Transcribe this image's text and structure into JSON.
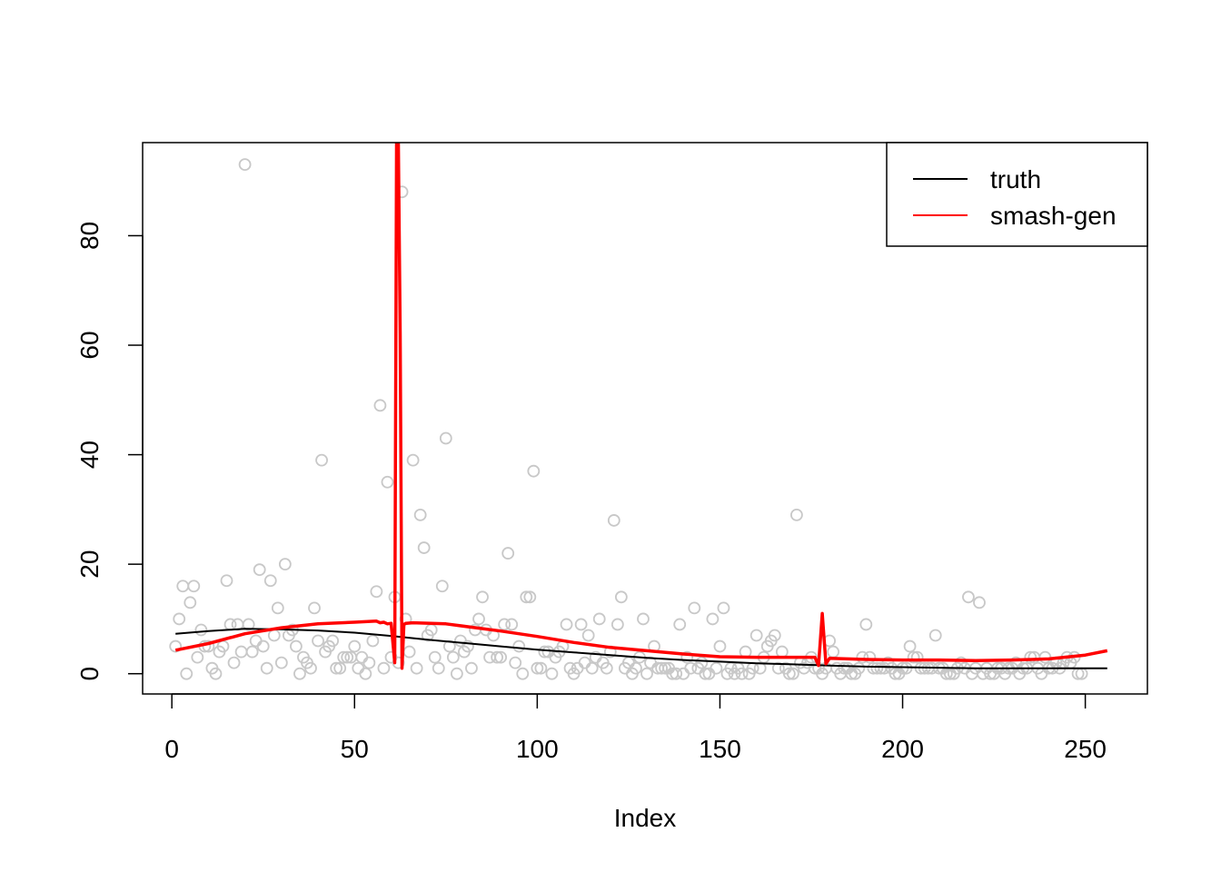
{
  "chart_data": {
    "type": "scatter",
    "title": "",
    "xlabel": "Index",
    "ylabel": "",
    "xlim": [
      -8,
      267
    ],
    "ylim": [
      -3.7,
      97
    ],
    "x_ticks": [
      0,
      50,
      100,
      150,
      200,
      250
    ],
    "y_ticks": [
      0,
      20,
      40,
      60,
      80
    ],
    "legend": {
      "position": "top-right",
      "entries": [
        {
          "label": "truth",
          "color": "#000000"
        },
        {
          "label": "smash-gen",
          "color": "#ff0000"
        }
      ]
    },
    "points": {
      "color": "#c8c8c8",
      "y": [
        5,
        10,
        16,
        0,
        13,
        16,
        3,
        8,
        5,
        5,
        1,
        0,
        4,
        5,
        17,
        9,
        2,
        9,
        4,
        93,
        9,
        4,
        6,
        19,
        5,
        1,
        17,
        7,
        12,
        2,
        20,
        7,
        8,
        5,
        0,
        3,
        2,
        1,
        12,
        6,
        39,
        4,
        5,
        6,
        1,
        1,
        3,
        3,
        3,
        5,
        1,
        3,
        0,
        2,
        6,
        15,
        49,
        1,
        35,
        3,
        14,
        2,
        88,
        10,
        4,
        39,
        1,
        29,
        23,
        7,
        8,
        3,
        1,
        16,
        43,
        5,
        3,
        0,
        6,
        4,
        5,
        1,
        8,
        10,
        14,
        8,
        3,
        7,
        3,
        3,
        9,
        22,
        9,
        2,
        5,
        0,
        14,
        14,
        37,
        1,
        1,
        4,
        4,
        0,
        3,
        4,
        5,
        9,
        1,
        0,
        1,
        9,
        2,
        7,
        1,
        3,
        10,
        2,
        1,
        4,
        28,
        9,
        14,
        1,
        2,
        0,
        1,
        3,
        10,
        0,
        2,
        5,
        1,
        1,
        1,
        1,
        0,
        0,
        9,
        0,
        3,
        1,
        12,
        1,
        2,
        0,
        0,
        10,
        1,
        5,
        12,
        0,
        1,
        0,
        1,
        0,
        4,
        0,
        1,
        7,
        1,
        3,
        5,
        6,
        7,
        1,
        4,
        1,
        0,
        0,
        29,
        2,
        1,
        2,
        3,
        1,
        1,
        0,
        1,
        6,
        4,
        1,
        0,
        1,
        1,
        0,
        0,
        1,
        3,
        9,
        3,
        1,
        1,
        1,
        1,
        2,
        1,
        0,
        0,
        1,
        1,
        5,
        3,
        3,
        1,
        1,
        1,
        1,
        7,
        1,
        1,
        0,
        0,
        0,
        1,
        2,
        1,
        14,
        0,
        1,
        13,
        0,
        1,
        0,
        0,
        1,
        1,
        0,
        1,
        1,
        2,
        0,
        1,
        1,
        3,
        3,
        1,
        0,
        3,
        1,
        1,
        2,
        1,
        2,
        3,
        2,
        3,
        0,
        0
      ]
    },
    "series": [
      {
        "name": "truth",
        "color": "#000000",
        "x": [
          1,
          10,
          20,
          30,
          40,
          50,
          60,
          70,
          80,
          90,
          100,
          110,
          120,
          130,
          140,
          150,
          160,
          170,
          180,
          190,
          200,
          210,
          220,
          230,
          240,
          250,
          256
        ],
        "y": [
          7.3,
          7.8,
          8.2,
          8.1,
          7.9,
          7.5,
          6.9,
          6.2,
          5.6,
          5.0,
          4.4,
          3.9,
          3.4,
          2.9,
          2.5,
          2.2,
          1.9,
          1.7,
          1.5,
          1.3,
          1.2,
          1.1,
          1.0,
          1.0,
          1.0,
          1.0,
          1.0
        ]
      },
      {
        "name": "smash-gen",
        "color": "#ff0000",
        "x": [
          1,
          10,
          20,
          30,
          40,
          50,
          56,
          57,
          58,
          59,
          60,
          61,
          61.5,
          62,
          62.5,
          63,
          63.5,
          64,
          66,
          75,
          90,
          100,
          110,
          120,
          130,
          140,
          150,
          160,
          170,
          176,
          177,
          178,
          179,
          180,
          190,
          200,
          210,
          220,
          230,
          240,
          250,
          256
        ],
        "y": [
          4.3,
          5.5,
          7.3,
          8.4,
          9.1,
          9.4,
          9.6,
          9.3,
          9.4,
          9.1,
          9.2,
          2.0,
          97,
          97,
          62,
          1.0,
          9.0,
          9.2,
          9.3,
          9.1,
          7.8,
          6.8,
          5.7,
          4.8,
          4.2,
          3.6,
          3.1,
          3.0,
          3.0,
          3.0,
          1.5,
          11.0,
          1.8,
          2.8,
          2.6,
          2.5,
          2.5,
          2.4,
          2.5,
          2.7,
          3.4,
          4.2
        ]
      }
    ]
  }
}
